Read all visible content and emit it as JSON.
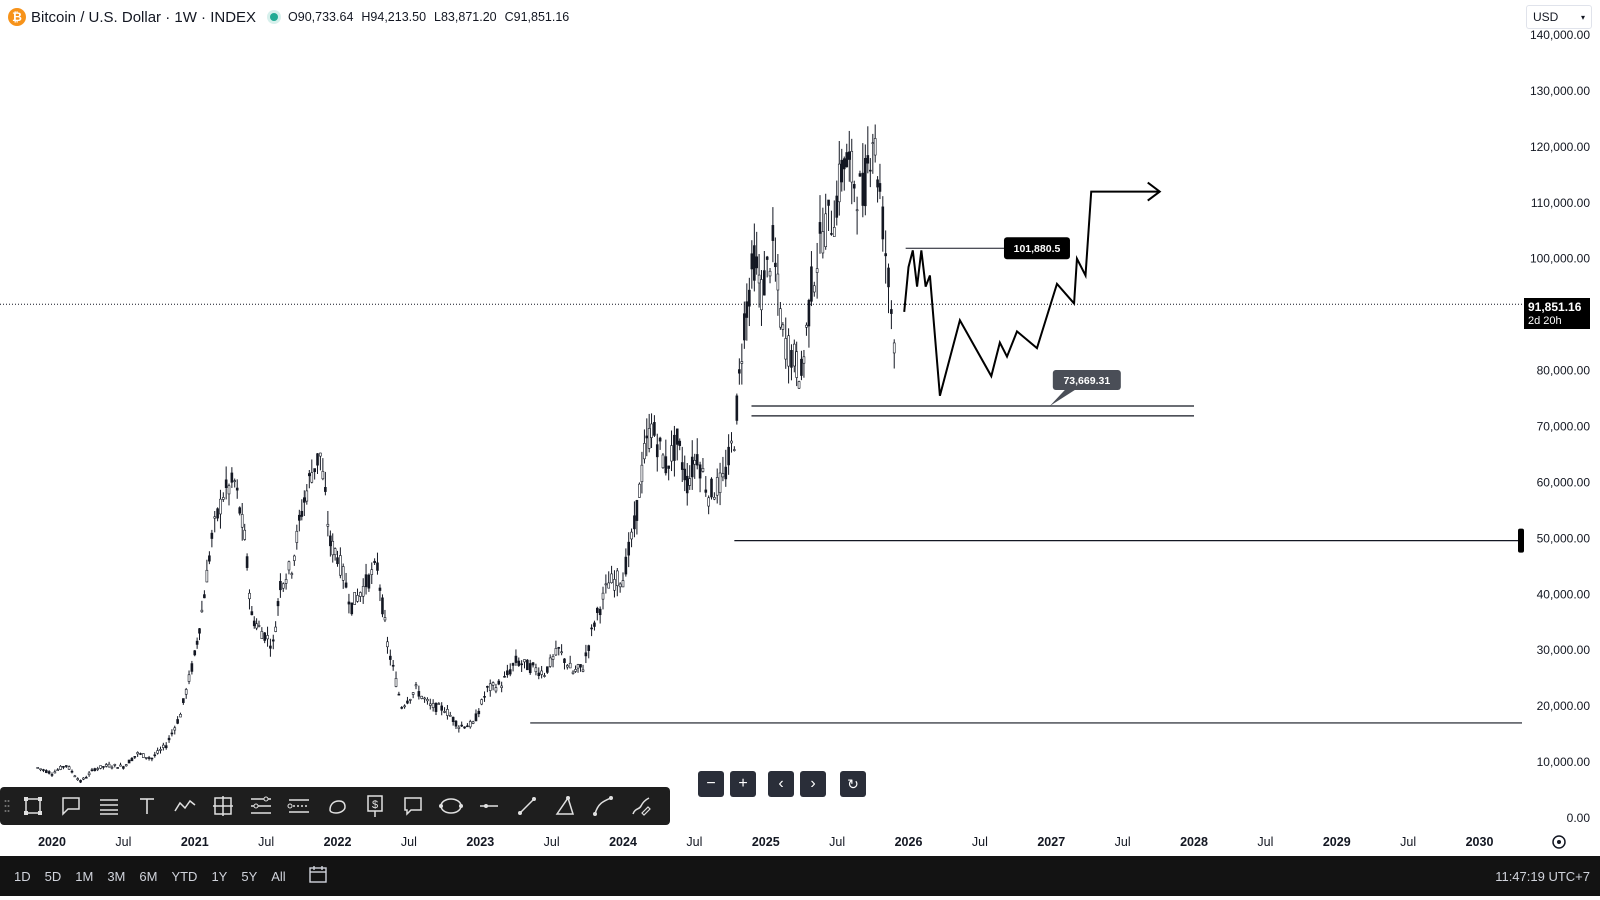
{
  "header": {
    "symbol": "Bitcoin / U.S. Dollar · 1W · INDEX",
    "logo_icon": "bitcoin-logo-icon",
    "open_label": "O",
    "open": "90,733.64",
    "high_label": "H",
    "high": "94,213.50",
    "low_label": "L",
    "low": "83,871.20",
    "close_label": "C",
    "close": "91,851.16"
  },
  "currency": {
    "value": "USD"
  },
  "last_price": {
    "value": "91,851.16",
    "countdown": "2d 20h"
  },
  "annotations": {
    "upper_label": "101,880.5",
    "lower_label": "73,669.31"
  },
  "range_buttons": [
    "1D",
    "5D",
    "1M",
    "3M",
    "6M",
    "YTD",
    "1Y",
    "5Y",
    "All"
  ],
  "clock": "11:47:19 UTC+7",
  "toolbar_icons": [
    "rectangle-icon",
    "callout-icon",
    "lines-icon",
    "text-icon",
    "path-icon",
    "crosshair-box-icon",
    "fib-icon",
    "parallel-channel-icon",
    "ellipse-icon",
    "price-note-icon",
    "comment-icon",
    "circle-tool-icon",
    "horizontal-line-icon",
    "trend-line-icon",
    "triangle-icon",
    "curve-icon",
    "brush-icon"
  ],
  "colors": {
    "candle": "#131722",
    "price_tag_bg": "#000000",
    "accent_orange": "#f7931a",
    "status_green": "#22ab94"
  },
  "chart_data": {
    "type": "line",
    "title": "Bitcoin / U.S. Dollar · 1W · INDEX",
    "y_axis": {
      "min": 0,
      "max": 140000,
      "ticks": [
        "0.00",
        "10,000.00",
        "20,000.00",
        "30,000.00",
        "40,000.00",
        "50,000.00",
        "60,000.00",
        "70,000.00",
        "80,000.00",
        "90,000.00",
        "100,000.00",
        "110,000.00",
        "120,000.00",
        "130,000.00",
        "140,000.00"
      ],
      "tick_values": [
        0,
        10000,
        20000,
        30000,
        40000,
        50000,
        60000,
        70000,
        80000,
        90000,
        100000,
        110000,
        120000,
        130000,
        140000
      ]
    },
    "x_axis": {
      "ticks": [
        {
          "label": "2020",
          "year": 2020.0
        },
        {
          "label": "Jul",
          "year": 2020.5
        },
        {
          "label": "2021",
          "year": 2021.0
        },
        {
          "label": "Jul",
          "year": 2021.5
        },
        {
          "label": "2022",
          "year": 2022.0
        },
        {
          "label": "Jul",
          "year": 2022.5
        },
        {
          "label": "2023",
          "year": 2023.0
        },
        {
          "label": "Jul",
          "year": 2023.5
        },
        {
          "label": "2024",
          "year": 2024.0
        },
        {
          "label": "Jul",
          "year": 2024.5
        },
        {
          "label": "2025",
          "year": 2025.0
        },
        {
          "label": "Jul",
          "year": 2025.5
        },
        {
          "label": "2026",
          "year": 2026.0
        },
        {
          "label": "Jul",
          "year": 2026.5
        },
        {
          "label": "2027",
          "year": 2027.0
        },
        {
          "label": "Jul",
          "year": 2027.5
        },
        {
          "label": "2028",
          "year": 2028.0
        },
        {
          "label": "Jul",
          "year": 2028.5
        },
        {
          "label": "2029",
          "year": 2029.0
        },
        {
          "label": "Jul",
          "year": 2029.5
        },
        {
          "label": "2030",
          "year": 2030.0
        }
      ]
    },
    "series": [
      {
        "points": [
          [
            2019.9,
            9000
          ],
          [
            2020.0,
            8000
          ],
          [
            2020.1,
            9500
          ],
          [
            2020.2,
            6500
          ],
          [
            2020.3,
            8800
          ],
          [
            2020.4,
            9400
          ],
          [
            2020.5,
            9200
          ],
          [
            2020.6,
            11500
          ],
          [
            2020.7,
            10700
          ],
          [
            2020.8,
            13000
          ],
          [
            2020.9,
            18500
          ],
          [
            2021.0,
            29000
          ],
          [
            2021.05,
            37000
          ],
          [
            2021.12,
            50000
          ],
          [
            2021.2,
            58000
          ],
          [
            2021.28,
            60000
          ],
          [
            2021.35,
            50000
          ],
          [
            2021.4,
            36000
          ],
          [
            2021.45,
            34000
          ],
          [
            2021.55,
            31000
          ],
          [
            2021.6,
            42000
          ],
          [
            2021.68,
            45000
          ],
          [
            2021.75,
            55000
          ],
          [
            2021.82,
            62000
          ],
          [
            2021.88,
            65000
          ],
          [
            2021.95,
            49000
          ],
          [
            2022.0,
            47000
          ],
          [
            2022.1,
            38000
          ],
          [
            2022.2,
            42000
          ],
          [
            2022.28,
            45000
          ],
          [
            2022.35,
            31000
          ],
          [
            2022.45,
            20000
          ],
          [
            2022.55,
            23000
          ],
          [
            2022.65,
            20000
          ],
          [
            2022.75,
            19500
          ],
          [
            2022.85,
            16500
          ],
          [
            2022.95,
            16700
          ],
          [
            2023.05,
            23000
          ],
          [
            2023.15,
            24000
          ],
          [
            2023.25,
            28000
          ],
          [
            2023.35,
            27000
          ],
          [
            2023.45,
            26000
          ],
          [
            2023.55,
            30000
          ],
          [
            2023.65,
            26000
          ],
          [
            2023.72,
            27000
          ],
          [
            2023.8,
            35000
          ],
          [
            2023.9,
            42000
          ],
          [
            2024.0,
            43000
          ],
          [
            2024.08,
            52000
          ],
          [
            2024.15,
            65000
          ],
          [
            2024.2,
            70000
          ],
          [
            2024.3,
            63000
          ],
          [
            2024.38,
            67000
          ],
          [
            2024.45,
            60000
          ],
          [
            2024.52,
            65000
          ],
          [
            2024.6,
            58000
          ],
          [
            2024.7,
            60000
          ],
          [
            2024.78,
            68000
          ],
          [
            2024.85,
            89000
          ],
          [
            2024.92,
            100000
          ],
          [
            2024.97,
            94000
          ],
          [
            2025.05,
            102000
          ],
          [
            2025.12,
            86000
          ],
          [
            2025.2,
            82000
          ],
          [
            2025.25,
            79000
          ],
          [
            2025.32,
            95000
          ],
          [
            2025.4,
            105000
          ],
          [
            2025.48,
            108000
          ],
          [
            2025.55,
            118000
          ],
          [
            2025.62,
            114000
          ],
          [
            2025.68,
            111000
          ],
          [
            2025.75,
            123000
          ],
          [
            2025.8,
            112000
          ],
          [
            2025.86,
            96000
          ],
          [
            2025.9,
            86000
          ],
          [
            2025.92,
            92000
          ]
        ]
      }
    ]
  }
}
